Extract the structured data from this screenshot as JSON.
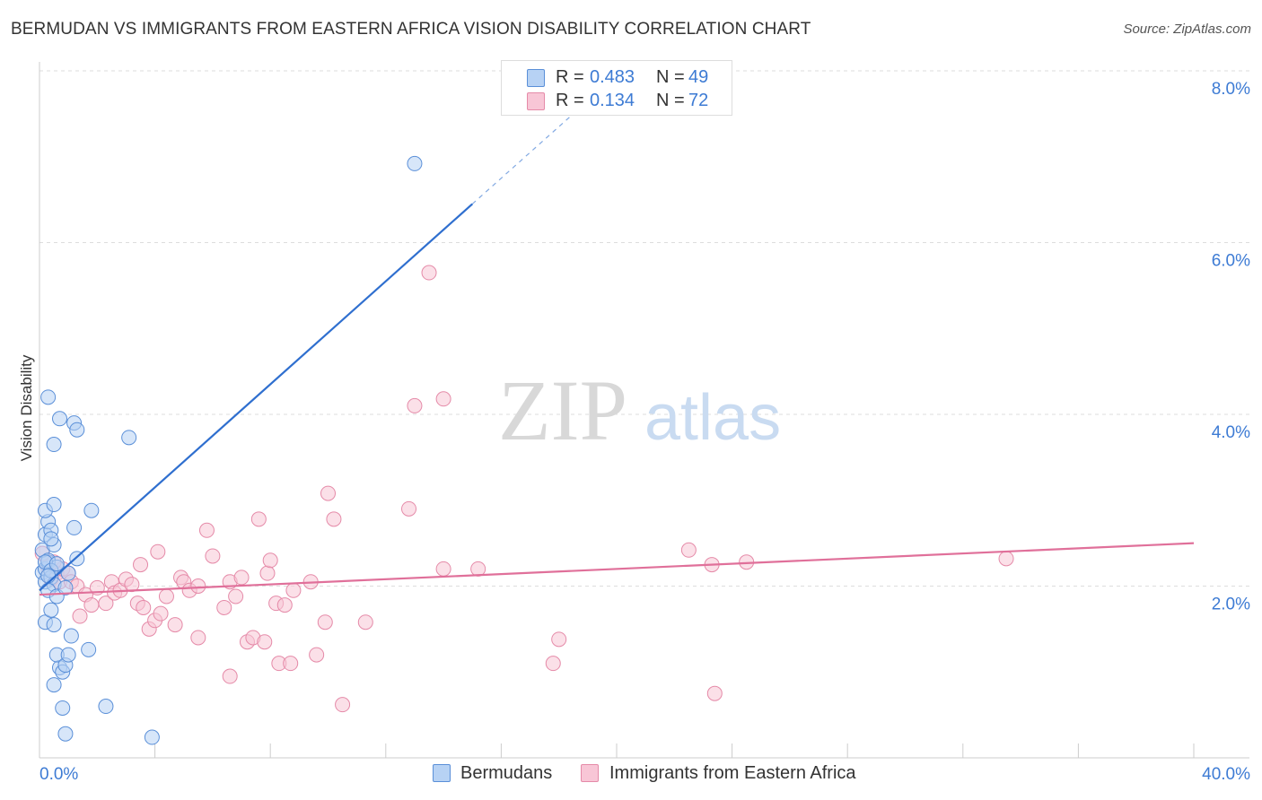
{
  "header": {
    "title": "BERMUDAN VS IMMIGRANTS FROM EASTERN AFRICA VISION DISABILITY CORRELATION CHART",
    "source": "Source: ZipAtlas.com"
  },
  "watermark": {
    "zip": "ZIP",
    "atlas": "atlas"
  },
  "legend_top": {
    "rows": [
      {
        "r_label": "R =",
        "r_value": "0.483",
        "n_label": "N =",
        "n_value": "49"
      },
      {
        "r_label": "R =",
        "r_value": "0.134",
        "n_label": "N =",
        "n_value": "72"
      }
    ]
  },
  "legend_bottom": {
    "items": [
      "Bermudans",
      "Immigrants from Eastern Africa"
    ]
  },
  "colors": {
    "blue_fill": "#b7d2f4",
    "blue_stroke": "#5a8fd8",
    "blue_line": "#2f6fcf",
    "pink_fill": "#f8c6d6",
    "pink_stroke": "#e58aa8",
    "pink_line": "#e0709a",
    "axis_text": "#3d7bd4",
    "grid": "#dddddd"
  },
  "chart_data": {
    "type": "scatter",
    "title": "BERMUDAN VS IMMIGRANTS FROM EASTERN AFRICA VISION DISABILITY CORRELATION CHART",
    "xlabel": "",
    "ylabel": "Vision Disability",
    "xlim": [
      0,
      40
    ],
    "ylim": [
      0,
      8
    ],
    "x_tick_labels": {
      "left": "0.0%",
      "right": "40.0%"
    },
    "y_ticks": [
      {
        "value": 2,
        "label": "2.0%"
      },
      {
        "value": 4,
        "label": "4.0%"
      },
      {
        "value": 6,
        "label": "6.0%"
      },
      {
        "value": 8,
        "label": "8.0%"
      }
    ],
    "grid": true,
    "series": [
      {
        "name": "Bermudans",
        "r": 0.483,
        "n": 49,
        "trend": {
          "x0": 0,
          "y0": 1.95,
          "x1": 15,
          "y1": 6.45,
          "dash_to_x": 19.1
        },
        "points": [
          [
            0.1,
            2.16
          ],
          [
            0.2,
            2.2
          ],
          [
            0.2,
            2.05
          ],
          [
            0.3,
            2.28
          ],
          [
            0.1,
            2.42
          ],
          [
            0.2,
            2.6
          ],
          [
            0.3,
            2.75
          ],
          [
            0.2,
            2.88
          ],
          [
            0.5,
            2.95
          ],
          [
            0.4,
            2.65
          ],
          [
            0.5,
            2.48
          ],
          [
            0.4,
            2.55
          ],
          [
            0.3,
            2.3
          ],
          [
            0.6,
            2.22
          ],
          [
            0.4,
            2.1
          ],
          [
            0.5,
            2.02
          ],
          [
            0.3,
            1.95
          ],
          [
            0.6,
            1.88
          ],
          [
            0.2,
            1.58
          ],
          [
            0.5,
            1.55
          ],
          [
            0.4,
            1.72
          ],
          [
            0.7,
            1.05
          ],
          [
            0.6,
            1.2
          ],
          [
            0.8,
            1.0
          ],
          [
            0.9,
            1.08
          ],
          [
            1.0,
            1.2
          ],
          [
            1.1,
            1.42
          ],
          [
            0.5,
            0.85
          ],
          [
            0.8,
            0.58
          ],
          [
            0.9,
            0.28
          ],
          [
            0.3,
            4.2
          ],
          [
            0.7,
            3.95
          ],
          [
            1.2,
            3.9
          ],
          [
            1.3,
            3.82
          ],
          [
            0.5,
            3.65
          ],
          [
            3.1,
            3.73
          ],
          [
            1.8,
            2.88
          ],
          [
            1.2,
            2.68
          ],
          [
            1.3,
            2.32
          ],
          [
            1.0,
            2.15
          ],
          [
            0.9,
            1.98
          ],
          [
            1.7,
            1.26
          ],
          [
            2.3,
            0.6
          ],
          [
            3.9,
            0.24
          ],
          [
            13.0,
            6.92
          ],
          [
            0.2,
            2.28
          ],
          [
            0.4,
            2.18
          ],
          [
            0.6,
            2.26
          ],
          [
            0.3,
            2.12
          ]
        ]
      },
      {
        "name": "Immigrants from Eastern Africa",
        "r": 0.134,
        "n": 72,
        "trend": {
          "x0": 0,
          "y0": 1.9,
          "x1": 40,
          "y1": 2.5
        },
        "points": [
          [
            0.1,
            2.38
          ],
          [
            0.3,
            2.22
          ],
          [
            0.4,
            2.08
          ],
          [
            0.6,
            2.15
          ],
          [
            0.7,
            2.05
          ],
          [
            0.8,
            2.2
          ],
          [
            0.5,
            2.28
          ],
          [
            1.0,
            2.15
          ],
          [
            1.1,
            2.05
          ],
          [
            1.3,
            2.0
          ],
          [
            1.6,
            1.9
          ],
          [
            1.8,
            1.78
          ],
          [
            2.0,
            1.98
          ],
          [
            2.3,
            1.8
          ],
          [
            2.5,
            2.05
          ],
          [
            2.6,
            1.92
          ],
          [
            2.8,
            1.95
          ],
          [
            3.0,
            2.08
          ],
          [
            3.2,
            2.02
          ],
          [
            3.4,
            1.8
          ],
          [
            3.5,
            2.25
          ],
          [
            3.6,
            1.75
          ],
          [
            3.8,
            1.5
          ],
          [
            4.0,
            1.6
          ],
          [
            4.1,
            2.4
          ],
          [
            4.2,
            1.68
          ],
          [
            4.4,
            1.88
          ],
          [
            4.7,
            1.55
          ],
          [
            4.9,
            2.1
          ],
          [
            5.0,
            2.05
          ],
          [
            5.2,
            1.95
          ],
          [
            5.5,
            2.0
          ],
          [
            5.5,
            1.4
          ],
          [
            5.8,
            2.65
          ],
          [
            6.0,
            2.35
          ],
          [
            6.4,
            1.75
          ],
          [
            6.6,
            2.05
          ],
          [
            6.8,
            1.88
          ],
          [
            7.0,
            2.1
          ],
          [
            7.2,
            1.35
          ],
          [
            7.4,
            1.4
          ],
          [
            7.6,
            2.78
          ],
          [
            7.8,
            1.35
          ],
          [
            7.9,
            2.15
          ],
          [
            8.0,
            2.3
          ],
          [
            8.2,
            1.8
          ],
          [
            8.3,
            1.1
          ],
          [
            8.5,
            1.78
          ],
          [
            8.7,
            1.1
          ],
          [
            8.8,
            1.95
          ],
          [
            9.4,
            2.05
          ],
          [
            9.6,
            1.2
          ],
          [
            9.9,
            1.58
          ],
          [
            10.0,
            3.08
          ],
          [
            10.2,
            2.78
          ],
          [
            10.5,
            0.62
          ],
          [
            11.3,
            1.58
          ],
          [
            12.8,
            2.9
          ],
          [
            13.0,
            4.1
          ],
          [
            13.5,
            5.65
          ],
          [
            14.0,
            4.18
          ],
          [
            14.0,
            2.2
          ],
          [
            15.2,
            2.2
          ],
          [
            17.8,
            1.1
          ],
          [
            18.0,
            1.38
          ],
          [
            22.5,
            2.42
          ],
          [
            23.3,
            2.25
          ],
          [
            23.4,
            0.75
          ],
          [
            24.5,
            2.28
          ],
          [
            33.5,
            2.32
          ],
          [
            1.4,
            1.65
          ],
          [
            6.6,
            0.95
          ]
        ]
      }
    ]
  }
}
